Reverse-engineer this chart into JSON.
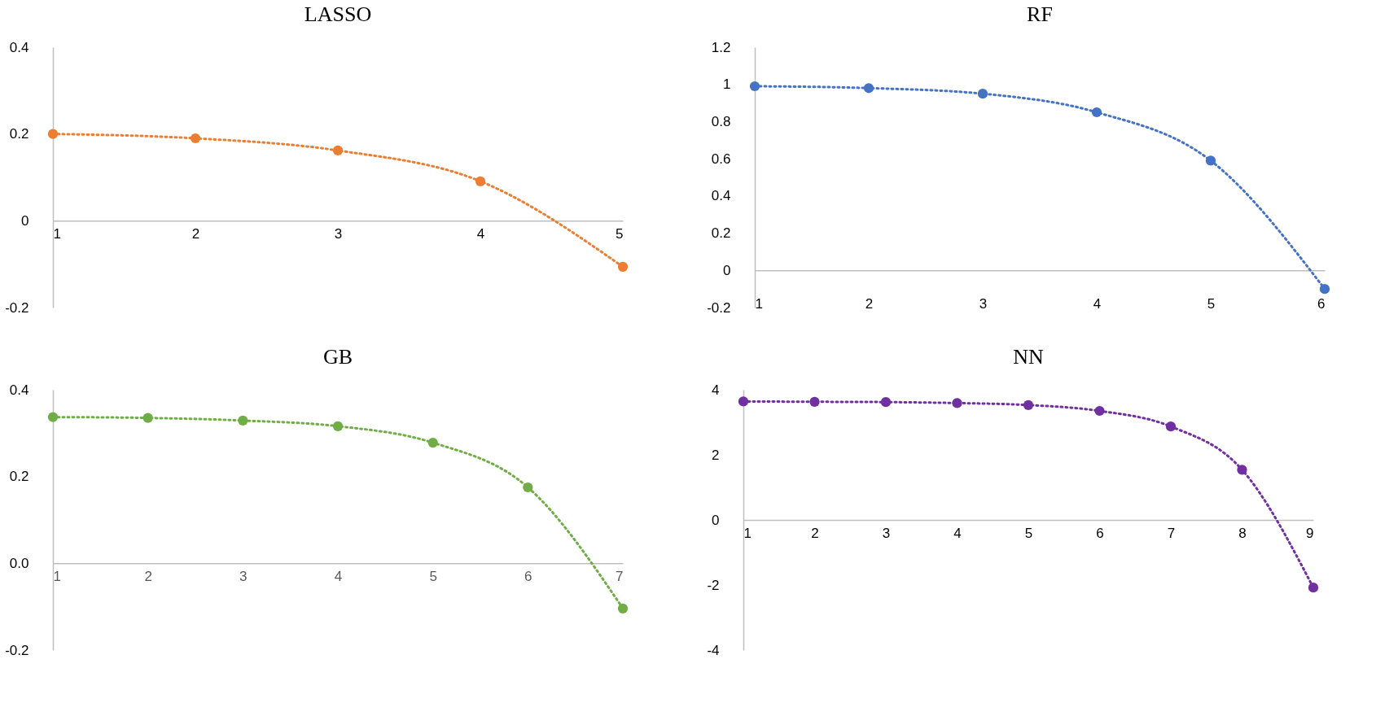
{
  "chart_data": [
    {
      "type": "line",
      "title": "LASSO",
      "x": [
        1,
        2,
        3,
        4,
        5
      ],
      "xlim": [
        1,
        5
      ],
      "xticks": [
        1,
        2,
        3,
        4,
        5
      ],
      "ylim": [
        -0.2,
        0.4
      ],
      "yticks": [
        -0.2,
        0,
        0.2,
        0.4
      ],
      "grid": false,
      "marker": "circle",
      "line_style": "dotted",
      "series": [
        {
          "color": "#ed7d31",
          "values": [
            0.2,
            0.19,
            0.162,
            0.091,
            -0.106
          ]
        }
      ]
    },
    {
      "type": "line",
      "title": "RF",
      "x": [
        1,
        2,
        3,
        4,
        5,
        6
      ],
      "xlim": [
        1,
        6
      ],
      "xticks": [
        1,
        2,
        3,
        4,
        5,
        6
      ],
      "ylim": [
        -0.2,
        1.2
      ],
      "yticks": [
        -0.2,
        0,
        0.2,
        0.4,
        0.6,
        0.8,
        1,
        1.2
      ],
      "grid": false,
      "marker": "circle",
      "line_style": "dotted",
      "series": [
        {
          "color": "#4472c4",
          "values": [
            0.99,
            0.98,
            0.95,
            0.85,
            0.59,
            -0.1
          ]
        }
      ]
    },
    {
      "type": "line",
      "title": "GB",
      "x": [
        1,
        2,
        3,
        4,
        5,
        6,
        7
      ],
      "xlim": [
        1,
        7
      ],
      "xticks": [
        1,
        2,
        3,
        4,
        5,
        6,
        7
      ],
      "ylim": [
        -0.2,
        0.4
      ],
      "yticks": [
        -0.2,
        {
          "value": 0,
          "label": "0.0"
        },
        0.2,
        0.4
      ],
      "grid": false,
      "marker": "circle",
      "line_style": "dotted",
      "series": [
        {
          "color": "#70ad47",
          "values": [
            0.337,
            0.335,
            0.329,
            0.316,
            0.278,
            0.175,
            -0.104
          ]
        }
      ]
    },
    {
      "type": "line",
      "title": "NN",
      "x": [
        1,
        2,
        3,
        4,
        5,
        6,
        7,
        8,
        9
      ],
      "xlim": [
        1,
        9
      ],
      "xticks": [
        1,
        2,
        3,
        4,
        5,
        6,
        7,
        8,
        9
      ],
      "ylim": [
        -4,
        4
      ],
      "yticks": [
        -4,
        -2,
        0,
        2,
        4
      ],
      "grid": false,
      "marker": "circle",
      "line_style": "dotted",
      "series": [
        {
          "color": "#7030a0",
          "values": [
            3.64,
            3.63,
            3.62,
            3.59,
            3.53,
            3.35,
            2.87,
            1.54,
            -2.08
          ]
        }
      ]
    }
  ]
}
